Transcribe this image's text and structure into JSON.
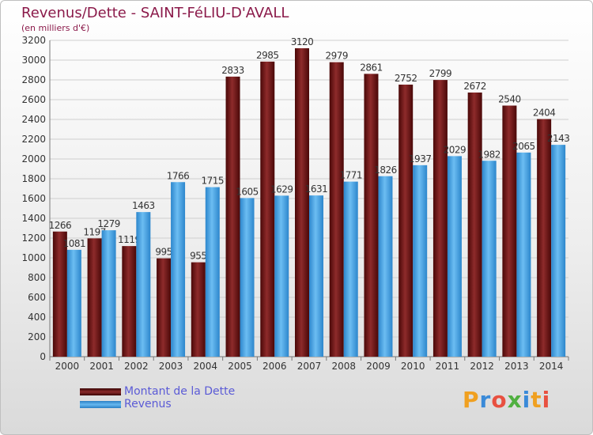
{
  "chart_data": {
    "type": "bar",
    "title": "Revenus/Dette - SAINT-FéLIU-D'AVALL",
    "subtitle": "(en milliers d'€)",
    "categories": [
      "2000",
      "2001",
      "2002",
      "2003",
      "2004",
      "2005",
      "2006",
      "2007",
      "2008",
      "2009",
      "2010",
      "2011",
      "2012",
      "2013",
      "2014"
    ],
    "series": [
      {
        "name": "Montant de la Dette",
        "color": "#7a1a1a",
        "values": [
          1266,
          1197,
          1119,
          995,
          955,
          2833,
          2985,
          3120,
          2979,
          2861,
          2752,
          2799,
          2672,
          2540,
          2404
        ],
        "labels": [
          "1266",
          "1197",
          "1119",
          "995",
          "955",
          "2833",
          "2985",
          "3120",
          "2979",
          "2861",
          "2752",
          "2799",
          "2672",
          "2540",
          "2404"
        ]
      },
      {
        "name": "Revenus",
        "color": "#4fa8e8",
        "values": [
          1081,
          1279,
          1463,
          1766,
          1715,
          1605,
          1629,
          1631,
          1771,
          1826,
          1937,
          2029,
          1982,
          2065,
          2143
        ],
        "labels": [
          "1081",
          "1279",
          "1463",
          "1766",
          "1715",
          "1605",
          "1629",
          "1631",
          "1771",
          "1826",
          "1937",
          "2029",
          "1982",
          "2065",
          "2143"
        ]
      }
    ],
    "yticks": [
      "0",
      "200",
      "400",
      "600",
      "800",
      "1000",
      "1200",
      "1400",
      "1600",
      "1800",
      "2000",
      "2200",
      "2400",
      "2600",
      "2800",
      "3000",
      "3200"
    ],
    "ylim": [
      0,
      3200
    ],
    "grid": true,
    "legend_position": "bottom-left"
  },
  "logo": {
    "text": "Proxiti"
  }
}
